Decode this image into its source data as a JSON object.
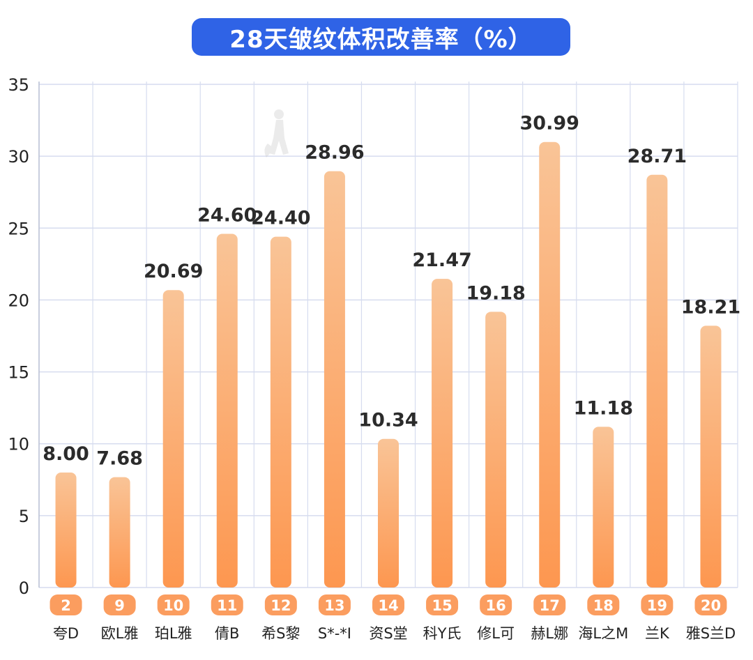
{
  "colors": {
    "title_bg": "#2f63e6",
    "bar_top": "#f9c497",
    "bar_bottom": "#fd9750",
    "badge": "#fb9d5f",
    "grid": "#d6dcef",
    "text": "#222222"
  },
  "chart_data": {
    "type": "bar",
    "title": "28天皱纹体积改善率（%）",
    "ylim": [
      0,
      35
    ],
    "yticks": [
      0,
      5,
      10,
      15,
      20,
      25,
      30,
      35
    ],
    "grid": true,
    "bars": [
      {
        "rank": "2",
        "name": "夸D",
        "value": 8.0,
        "label": "8.00"
      },
      {
        "rank": "9",
        "name": "欧L雅",
        "value": 7.68,
        "label": "7.68"
      },
      {
        "rank": "10",
        "name": "珀L雅",
        "value": 20.69,
        "label": "20.69"
      },
      {
        "rank": "11",
        "name": "倩B",
        "value": 24.6,
        "label": "24.60"
      },
      {
        "rank": "12",
        "name": "希S黎",
        "value": 24.4,
        "label": "24.40"
      },
      {
        "rank": "13",
        "name": "S*-*I",
        "value": 28.96,
        "label": "28.96"
      },
      {
        "rank": "14",
        "name": "资S堂",
        "value": 10.34,
        "label": "10.34"
      },
      {
        "rank": "15",
        "name": "科Y氏",
        "value": 21.47,
        "label": "21.47"
      },
      {
        "rank": "16",
        "name": "修L可",
        "value": 19.18,
        "label": "19.18"
      },
      {
        "rank": "17",
        "name": "赫L娜",
        "value": 30.99,
        "label": "30.99"
      },
      {
        "rank": "18",
        "name": "海L之M",
        "value": 11.18,
        "label": "11.18"
      },
      {
        "rank": "19",
        "name": "兰K",
        "value": 28.71,
        "label": "28.71"
      },
      {
        "rank": "20",
        "name": "雅S兰D",
        "value": 18.21,
        "label": "18.21"
      }
    ]
  }
}
